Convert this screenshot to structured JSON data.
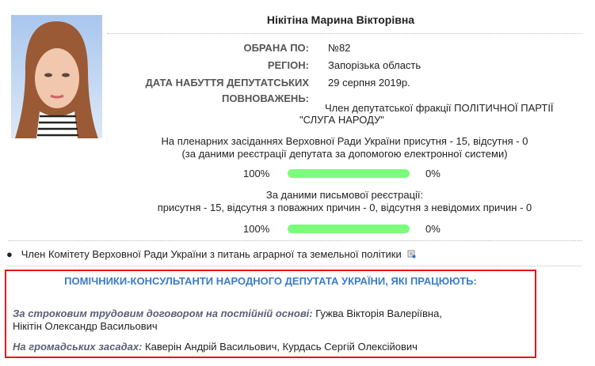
{
  "deputy": {
    "name": "Нікітіна Марина Вікторівна",
    "photo_icon": "portrait-photo",
    "fields": [
      {
        "label": "ОБРАНА ПО:",
        "value": "№82"
      },
      {
        "label": "РЕГІОН:",
        "value": "Запорізька область"
      },
      {
        "label": "ДАТА НАБУТТЯ ДЕПУТАТСЬКИХ",
        "value": "29 серпня 2019р."
      },
      {
        "label": "ПОВНОВАЖЕНЬ:",
        "value": ""
      }
    ],
    "faction_line1": "Член депутатської фракції ПОЛІТИЧНОЇ ПАРТІЇ",
    "faction_line2": "\"СЛУГА НАРОДУ\""
  },
  "attendance": {
    "electronic_line1": "На пленарних засіданнях Верховної Ради України присутня - 15, відсутня - 0",
    "electronic_line2": "(за даними реєстрації депутата за допомогою електронної системи)",
    "electronic_present_pct": "100%",
    "electronic_absent_pct": "0%",
    "electronic_fill": 100,
    "written_line1": "За даними письмової реєстрації:",
    "written_line2": "присутня - 15, відсутня з поважних причин - 0, відсутня з невідомих причин - 0",
    "written_present_pct": "100%",
    "written_absent_pct": "0%",
    "written_fill": 100,
    "bar_color": "#7cfc7c"
  },
  "committee": {
    "text": "Член Комітету Верховної Ради України з питань аграрної та земельної політики",
    "icon": "document-link-icon"
  },
  "assistants": {
    "heading": "ПОМІЧНИКИ-КОНСУЛЬТАНТИ НАРОДНОГО ДЕПУТАТА УКРАЇНИ, ЯКІ ПРАЦЮЮТЬ:",
    "contract_label": "За строковим трудовим договором на постійній основі:",
    "contract_names_1": " Гужва Вікторія Валеріївна,",
    "contract_names_2": "Нікітін Олександр Васильович",
    "volunteer_label": "На громадських засадах:",
    "volunteer_names": " Каверін Андрій Васильович, Курдась Сергій Олексійович",
    "heading_color": "#3a7bc8",
    "border_color": "#e8131b"
  }
}
